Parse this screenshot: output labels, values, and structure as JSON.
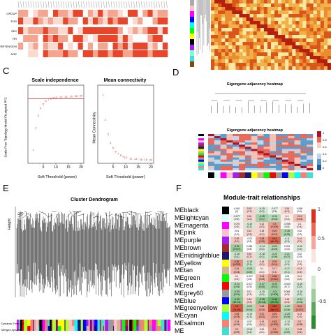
{
  "panels": {
    "a": {
      "traits": [
        "GROUP",
        "EGS",
        "SEX",
        "RR",
        "HYPERTENSION",
        "AGE"
      ]
    },
    "c": {
      "label": "C",
      "left": {
        "title": "Scale independence",
        "xlabel": "Soft Threshold (power)",
        "ylabel": "Scale Free Topology Model Fit,signed R^2",
        "xticks": [
          "5",
          "10",
          "15",
          "20"
        ]
      },
      "right": {
        "title": "Mean connectivity",
        "xlabel": "Soft Threshold (power)",
        "ylabel": "Mean Connectivity",
        "xticks": [
          "5",
          "10",
          "15",
          "20"
        ]
      }
    },
    "d": {
      "label": "D",
      "top_title": "Eigengene adjacency heatmap",
      "bottom_title": "Eigengene adjacency heatmap",
      "scale_ticks": [
        "1",
        "0.8",
        "0.6",
        "0.4",
        "0.2",
        "0"
      ]
    },
    "e": {
      "label": "E",
      "title": "Cluster Dendrogram",
      "ylabel": "Height",
      "row1": "Dynamic Tree Cut",
      "row2": "Merged dynamic"
    },
    "f": {
      "label": "F",
      "title": "Module-trait relationships",
      "scale_ticks": [
        "1",
        "0.5",
        "0",
        "-0.5"
      ],
      "modules": [
        {
          "name": "MEblack",
          "color": "#000000",
          "cells": [
            [
              "-0.061",
              "(1)",
              "#ffffff"
            ],
            [
              "0.15",
              "(0.2)",
              "#f6d6d0"
            ],
            [
              "-0.15",
              "(0.2)",
              "#d6e6d6"
            ],
            [
              "-0.077",
              "(0.5)",
              "#eef4ee"
            ],
            [
              "0.14",
              "(0.2)",
              "#f6d6d0"
            ],
            [
              "0.065",
              "(0.6)",
              "#ffffff"
            ]
          ]
        },
        {
          "name": "MElightcyan",
          "color": "#e0ffff",
          "cells": [
            [
              "-0.077",
              "(0.5)",
              "#eef4ee"
            ],
            [
              "0.16",
              "(0.2)",
              "#f6d6d0"
            ],
            [
              "-0.28",
              "(0.1)",
              "#a8d0a8"
            ],
            [
              "-0.24",
              "(0.04)",
              "#b6d8b6"
            ],
            [
              "0.1",
              "(0.4)",
              "#faeae6"
            ],
            [
              "0.21",
              "(0.03)",
              "#f0c0b6"
            ]
          ]
        },
        {
          "name": "MEmagenta",
          "color": "#ff00ff",
          "cells": [
            [
              "0.076",
              "(0.5)",
              "#fbeeea"
            ],
            [
              "-0.16",
              "(0.2)",
              "#d6e6d6"
            ],
            [
              "0.12",
              "(0.3)",
              "#f6d6d0"
            ],
            [
              "0.3",
              "(0.009)",
              "#e8a090"
            ],
            [
              "-0.056",
              "(0.6)",
              "#f4f8f4"
            ],
            [
              "0.1",
              "(0.4)",
              "#faeae6"
            ]
          ]
        },
        {
          "name": "MEpink",
          "color": "#ffc0cb",
          "cells": [
            [
              "0.01",
              "(0.9)",
              "#ffffff"
            ],
            [
              "0.12",
              "(0.3)",
              "#f6d6d0"
            ],
            [
              "0.16",
              "(0.2)",
              "#f6d6d0"
            ],
            [
              "0.29",
              "(0.01)",
              "#e8a090"
            ],
            [
              "-0.26",
              "(0.03)",
              "#b0d4b0"
            ],
            [
              "0.02",
              "(0.9)",
              "#ffffff"
            ]
          ]
        },
        {
          "name": "MEpurple",
          "color": "#a020f0",
          "cells": [
            [
              "0.19",
              "(0.1)",
              "#f2c8c0"
            ],
            [
              "-0.03",
              "(0.8)",
              "#ffffff"
            ],
            [
              "0.28",
              "(0.02)",
              "#e8a090"
            ],
            [
              "0.44",
              "(8e-05)",
              "#d86850"
            ],
            [
              "-0.11",
              "(0.3)",
              "#e0ece0"
            ],
            [
              "0.14",
              "(0.2)",
              "#f6d6d0"
            ]
          ]
        },
        {
          "name": "MEbrown",
          "color": "#a52a2a",
          "cells": [
            [
              "-0.31",
              "(0.007)",
              "#9ccc9c"
            ],
            [
              "0.036",
              "(0.8)",
              "#ffffff"
            ],
            [
              "-0.14",
              "(0.2)",
              "#d6e6d6"
            ],
            [
              "-0.24",
              "(0.04)",
              "#b6d8b6"
            ],
            [
              "0.031",
              "(0.8)",
              "#ffffff"
            ],
            [
              "-0.12",
              "(0.3)",
              "#dceadc"
            ]
          ]
        },
        {
          "name": "MEmidnightblue",
          "color": "#191970",
          "cells": [
            [
              "-0.18",
              "(0.1)",
              "#cce2cc"
            ],
            [
              "0.16",
              "(0.2)",
              "#f6d6d0"
            ],
            [
              "-0.18",
              "(0.1)",
              "#cce2cc"
            ],
            [
              "-0.23",
              "(0.05)",
              "#b8dab8"
            ],
            [
              "-0.21",
              "(0.07)",
              "#c0dcc0"
            ],
            [
              "0.02",
              "(0.9)",
              "#ffffff"
            ]
          ]
        },
        {
          "name": "MEyellow",
          "color": "#ffff00",
          "cells": [
            [
              "0.35",
              "(0.002)",
              "#e09080"
            ],
            [
              "-0.19",
              "(0.1)",
              "#cce2cc"
            ],
            [
              "0.16",
              "(0.2)",
              "#f6d6d0"
            ],
            [
              "0.29",
              "(0.01)",
              "#e8a090"
            ],
            [
              "-0.12",
              "(0.3)",
              "#dceadc"
            ],
            [
              "0.11",
              "(0.3)",
              "#faeae6"
            ]
          ]
        },
        {
          "name": "MEtan",
          "color": "#d2b48c",
          "cells": [
            [
              "0.24",
              "(0.04)",
              "#eeb8ac"
            ],
            [
              "-0.23",
              "(0.05)",
              "#b8dab8"
            ],
            [
              "0.1",
              "(0.4)",
              "#faeae6"
            ],
            [
              "0.17",
              "(0.1)",
              "#f2c8c0"
            ],
            [
              "-0.17",
              "(0.1)",
              "#d0e4d0"
            ],
            [
              "0.13",
              "(0.3)",
              "#f6d6d0"
            ]
          ]
        },
        {
          "name": "MEgreen",
          "color": "#00ff00",
          "cells": [
            [
              "0.1",
              "(0.4)",
              "#faeae6"
            ],
            [
              "-0.027",
              "(0.8)",
              "#ffffff"
            ],
            [
              "0.24",
              "(0.04)",
              "#eeb8ac"
            ],
            [
              "0.36",
              "(0.001)",
              "#e09080"
            ],
            [
              "0.03",
              "(0.8)",
              "#ffffff"
            ],
            [
              "0.11",
              "(0.3)",
              "#faeae6"
            ]
          ]
        },
        {
          "name": "MEred",
          "color": "#ff0000",
          "cells": [
            [
              "-0.24",
              "(0.04)",
              "#b6d8b6"
            ],
            [
              "-0.017",
              "(0.9)",
              "#ffffff"
            ],
            [
              "-0.27",
              "(0.02)",
              "#acd2ac"
            ],
            [
              "-0.29",
              "(0.01)",
              "#a4cea4"
            ],
            [
              "-0.043",
              "(0.7)",
              "#f8fbf8"
            ],
            [
              "-0.16",
              "(0.2)",
              "#d6e6d6"
            ]
          ]
        },
        {
          "name": "MEgrey60",
          "color": "#999999",
          "cells": [
            [
              "-0.29",
              "(0.01)",
              "#a4cea4"
            ],
            [
              "0.11",
              "(0.3)",
              "#faeae6"
            ],
            [
              "-0.15",
              "(0.2)",
              "#d6e6d6"
            ],
            [
              "-0.3",
              "(0.009)",
              "#a0cca0"
            ],
            [
              "0.084",
              "(0.5)",
              "#fbeeea"
            ],
            [
              "-0.16",
              "(0.2)",
              "#d6e6d6"
            ]
          ]
        },
        {
          "name": "MEblue",
          "color": "#0000ff",
          "cells": [
            [
              "-0.39",
              "(5e-04)",
              "#8cc48c"
            ],
            [
              "0.16",
              "(0.2)",
              "#f6d6d0"
            ],
            [
              "-0.38",
              "(7e-04)",
              "#90c690"
            ],
            [
              "-0.48",
              "(2e-05)",
              "#6cb46c"
            ],
            [
              "0.13",
              "(0.3)",
              "#f6d6d0"
            ],
            [
              "-0.24",
              "(0.04)",
              "#b6d8b6"
            ]
          ]
        },
        {
          "name": "MEgreenyellow",
          "color": "#adff2f",
          "cells": [
            [
              "0.5",
              "(7e-06)",
              "#d45a44"
            ],
            [
              "-0.24",
              "(0.04)",
              "#b6d8b6"
            ],
            [
              "0.26",
              "(0.02)",
              "#eaa898"
            ],
            [
              "0.55",
              "(5e-07)",
              "#d04a34"
            ],
            [
              "-0.22",
              "(0.06)",
              "#bcdcbc"
            ],
            [
              "0.31",
              "(0.007)",
              "#e49888"
            ]
          ]
        },
        {
          "name": "MEcyan",
          "color": "#00ffff",
          "cells": [
            [
              "0.26",
              "(0.03)",
              "#eaa898"
            ],
            [
              "-0.13",
              "(0.3)",
              "#dceadc"
            ],
            [
              "0.27",
              "(0.02)",
              "#eaa898"
            ],
            [
              "0.29",
              "(0.01)",
              "#e8a090"
            ],
            [
              "-0.24",
              "(0.04)",
              "#b6d8b6"
            ],
            [
              "0.13",
              "(0.3)",
              "#f6d6d0"
            ]
          ]
        },
        {
          "name": "MEsalmon",
          "color": "#fa8072",
          "cells": [
            [
              "0.24",
              "(0.04)",
              "#eeb8ac"
            ],
            [
              "-0.07",
              "(0.6)",
              "#f4f8f4"
            ],
            [
              "0.19",
              "(0.1)",
              "#f2c8c0"
            ],
            [
              "0.33",
              "(0.004)",
              "#e49888"
            ],
            [
              "-0.13",
              "(0.3)",
              "#dceadc"
            ],
            [
              "0.2",
              "(0.08)",
              "#f0c0b6"
            ]
          ]
        },
        {
          "name": "ME",
          "color": "#40e0d0",
          "cells": [
            [
              "0.2",
              "(0.09)",
              "#f0c0b6"
            ],
            [
              "-0.14",
              "(0.2)",
              "#d6e6d6"
            ],
            [
              "0.09",
              "(0.4)",
              "#faeae6"
            ],
            [
              "0.3",
              "(0.009)",
              "#e8a090"
            ],
            [
              "-0.2",
              "(0.09)",
              "#c4dec4"
            ],
            [
              "0.18",
              "(0.1)",
              "#f2c8c0"
            ]
          ]
        }
      ]
    }
  },
  "chart_data": [
    {
      "type": "scatter",
      "title": "Scale independence",
      "xlabel": "Soft Threshold (power)",
      "ylabel": "Scale Free Topology Model Fit,signed R^2",
      "x": [
        1,
        2,
        3,
        4,
        5,
        6,
        7,
        8,
        9,
        10,
        12,
        14,
        16,
        18,
        20
      ],
      "values": [
        0.15,
        0.45,
        0.62,
        0.72,
        0.78,
        0.82,
        0.84,
        0.855,
        0.865,
        0.87,
        0.875,
        0.88,
        0.885,
        0.89,
        0.895
      ],
      "threshold_line": 0.85,
      "xlim": [
        0,
        20
      ],
      "ylim": [
        0,
        1
      ]
    },
    {
      "type": "scatter",
      "title": "Mean connectivity",
      "xlabel": "Soft Threshold (power)",
      "ylabel": "Mean Connectivity",
      "x": [
        1,
        2,
        3,
        4,
        5,
        6,
        7,
        8,
        9,
        10,
        12,
        14,
        16,
        18,
        20
      ],
      "values": [
        1000,
        620,
        400,
        270,
        190,
        140,
        105,
        80,
        62,
        50,
        34,
        24,
        18,
        14,
        11
      ],
      "xlim": [
        0,
        20
      ],
      "ylim": [
        0,
        1100
      ]
    }
  ]
}
